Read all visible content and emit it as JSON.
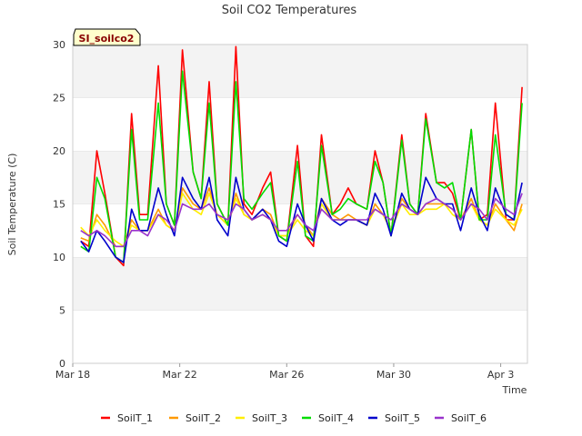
{
  "chart_data": {
    "type": "line",
    "title": "Soil CO2 Temperatures",
    "xlabel": "Time",
    "ylabel": "Soil Temperature (C)",
    "annotation": "SI_soilco2",
    "ylim": [
      0,
      30
    ],
    "xlim": [
      0,
      17.0
    ],
    "y_ticks": [
      0,
      5,
      10,
      15,
      20,
      25,
      30
    ],
    "x_ticks": [
      {
        "label": "Mar 18",
        "day": 0
      },
      {
        "label": "Mar 22",
        "day": 4
      },
      {
        "label": "Mar 26",
        "day": 8
      },
      {
        "label": "Mar 30",
        "day": 12
      },
      {
        "label": "Apr 3",
        "day": 16
      }
    ],
    "grid": "horizontal bands",
    "legend_position": "bottom",
    "x": [
      0.3,
      0.6,
      0.9,
      1.2,
      1.6,
      1.9,
      2.2,
      2.5,
      2.8,
      3.2,
      3.5,
      3.8,
      4.1,
      4.5,
      4.8,
      5.1,
      5.4,
      5.8,
      6.1,
      6.4,
      6.7,
      7.1,
      7.4,
      7.7,
      8.0,
      8.4,
      8.7,
      9.0,
      9.3,
      9.7,
      10.0,
      10.3,
      10.6,
      11.0,
      11.3,
      11.6,
      11.9,
      12.3,
      12.6,
      12.9,
      13.2,
      13.6,
      13.9,
      14.2,
      14.5,
      14.9,
      15.2,
      15.5,
      15.8,
      16.2,
      16.5,
      16.8
    ],
    "series": [
      {
        "name": "SoilT_1",
        "color": "#ff0000",
        "values": [
          11.5,
          11.0,
          20.0,
          16.0,
          10.0,
          9.2,
          23.5,
          14.0,
          14.0,
          28.0,
          15.0,
          13.0,
          29.5,
          18.0,
          15.5,
          26.5,
          15.0,
          13.0,
          29.8,
          15.0,
          14.0,
          16.5,
          18.0,
          12.0,
          11.5,
          20.5,
          12.0,
          11.0,
          21.5,
          14.0,
          15.0,
          16.5,
          15.0,
          14.5,
          20.0,
          17.0,
          12.0,
          21.5,
          15.0,
          14.0,
          23.5,
          17.0,
          17.0,
          16.0,
          13.5,
          22.0,
          13.5,
          14.0,
          24.5,
          13.5,
          13.5,
          26.0
        ]
      },
      {
        "name": "SoilT_2",
        "color": "#ff9900",
        "values": [
          11.8,
          11.5,
          14.0,
          13.0,
          11.0,
          11.0,
          13.5,
          12.5,
          12.5,
          14.5,
          13.0,
          12.5,
          16.5,
          15.0,
          14.5,
          16.5,
          14.0,
          13.0,
          16.0,
          14.0,
          13.5,
          14.5,
          14.0,
          12.0,
          12.0,
          14.0,
          13.0,
          12.0,
          15.5,
          14.0,
          13.5,
          14.0,
          13.5,
          13.0,
          15.0,
          14.0,
          12.5,
          15.5,
          14.5,
          14.0,
          15.0,
          15.0,
          15.0,
          14.5,
          13.5,
          15.5,
          13.5,
          13.0,
          15.0,
          13.5,
          12.5,
          15.0
        ]
      },
      {
        "name": "SoilT_3",
        "color": "#ffee00",
        "values": [
          12.8,
          12.0,
          13.5,
          12.5,
          11.5,
          11.0,
          13.0,
          12.5,
          12.5,
          14.0,
          13.0,
          12.5,
          16.0,
          14.5,
          14.0,
          16.0,
          14.0,
          13.0,
          15.5,
          14.0,
          13.5,
          14.0,
          13.5,
          12.0,
          12.0,
          13.5,
          12.5,
          12.0,
          15.0,
          13.5,
          13.5,
          13.5,
          13.5,
          13.0,
          14.5,
          14.0,
          12.5,
          15.0,
          14.0,
          14.0,
          14.5,
          14.5,
          15.0,
          14.0,
          13.5,
          15.0,
          13.5,
          13.0,
          14.5,
          13.5,
          13.0,
          14.5
        ]
      },
      {
        "name": "SoilT_4",
        "color": "#00dd00",
        "values": [
          11.0,
          10.5,
          17.5,
          15.5,
          10.0,
          9.5,
          22.0,
          13.5,
          13.5,
          24.5,
          15.0,
          13.0,
          27.5,
          18.0,
          15.5,
          24.5,
          15.0,
          13.0,
          26.5,
          15.5,
          14.5,
          16.0,
          17.0,
          12.0,
          11.5,
          19.0,
          12.0,
          11.5,
          20.5,
          14.0,
          14.5,
          15.5,
          15.0,
          14.5,
          19.0,
          17.0,
          12.0,
          21.0,
          15.0,
          14.0,
          23.0,
          17.0,
          16.5,
          17.0,
          13.5,
          22.0,
          13.5,
          13.5,
          21.5,
          14.0,
          13.5,
          24.5
        ]
      },
      {
        "name": "SoilT_5",
        "color": "#0000cc",
        "values": [
          11.5,
          10.5,
          12.5,
          11.5,
          10.0,
          9.5,
          14.5,
          12.5,
          12.5,
          16.5,
          14.0,
          12.0,
          17.5,
          15.5,
          14.5,
          17.5,
          13.5,
          12.0,
          17.5,
          14.5,
          13.5,
          14.5,
          13.5,
          11.5,
          11.0,
          15.0,
          13.0,
          11.5,
          15.5,
          13.5,
          13.0,
          13.5,
          13.5,
          13.0,
          16.0,
          14.5,
          12.0,
          16.0,
          14.5,
          14.0,
          17.5,
          15.5,
          15.0,
          15.0,
          12.5,
          16.5,
          14.0,
          12.5,
          16.5,
          14.0,
          13.5,
          17.0
        ]
      },
      {
        "name": "SoilT_6",
        "color": "#9933cc",
        "values": [
          12.5,
          12.0,
          12.5,
          12.0,
          11.0,
          11.0,
          12.5,
          12.5,
          12.0,
          14.0,
          13.5,
          12.5,
          15.0,
          14.5,
          14.5,
          15.0,
          14.0,
          13.5,
          15.0,
          14.5,
          13.5,
          14.0,
          13.5,
          12.5,
          12.5,
          14.0,
          13.0,
          12.5,
          14.5,
          13.5,
          13.5,
          13.5,
          13.5,
          13.5,
          14.5,
          14.0,
          13.5,
          15.0,
          14.5,
          14.0,
          15.0,
          15.5,
          15.0,
          14.5,
          13.5,
          15.0,
          14.5,
          13.5,
          15.5,
          14.5,
          14.0,
          16.0
        ]
      }
    ]
  }
}
